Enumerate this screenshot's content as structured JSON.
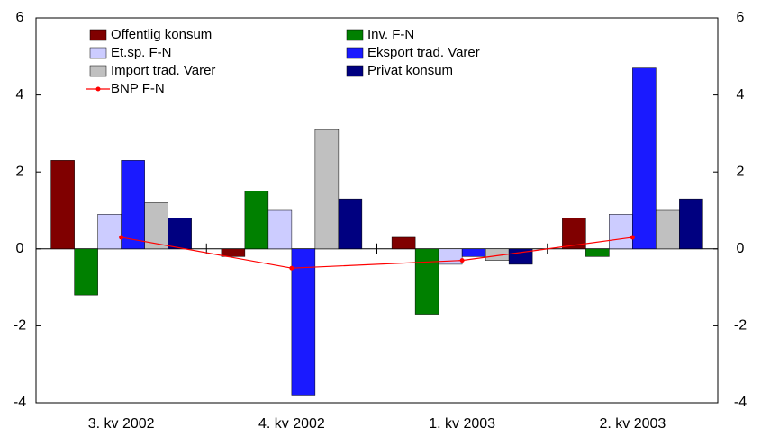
{
  "chart_data": {
    "type": "bar",
    "categories": [
      "3. kv 2002",
      "4. kv 2002",
      "1. kv 2003",
      "2. kv 2003"
    ],
    "series": [
      {
        "name": "Offentlig konsum",
        "color": "#800000",
        "values": [
          2.3,
          -0.2,
          0.3,
          0.8
        ]
      },
      {
        "name": "Inv. F-N",
        "color": "#008000",
        "values": [
          -1.2,
          1.5,
          -1.7,
          -0.2
        ]
      },
      {
        "name": "Et.sp. F-N",
        "color": "#ccccff",
        "values": [
          0.9,
          1.0,
          -0.4,
          0.9
        ]
      },
      {
        "name": "Eksport trad. Varer",
        "color": "#1a1aff",
        "values": [
          2.3,
          -3.8,
          -0.2,
          4.7
        ]
      },
      {
        "name": "Import trad. Varer",
        "color": "#c0c0c0",
        "values": [
          1.2,
          3.1,
          -0.3,
          1.0
        ]
      },
      {
        "name": "Privat konsum",
        "color": "#000080",
        "values": [
          0.8,
          1.3,
          -0.4,
          1.3
        ]
      },
      {
        "name": "BNP F-N",
        "color": "#ff0000",
        "type": "line",
        "values": [
          0.3,
          -0.5,
          -0.3,
          0.3
        ]
      }
    ],
    "ylim": [
      -4,
      6
    ],
    "yticks": [
      -4,
      -2,
      0,
      2,
      4,
      6
    ],
    "y2lim": [
      -4,
      6
    ],
    "y2ticks": [
      -4,
      -2,
      0,
      2,
      4,
      6
    ],
    "grid": false
  }
}
